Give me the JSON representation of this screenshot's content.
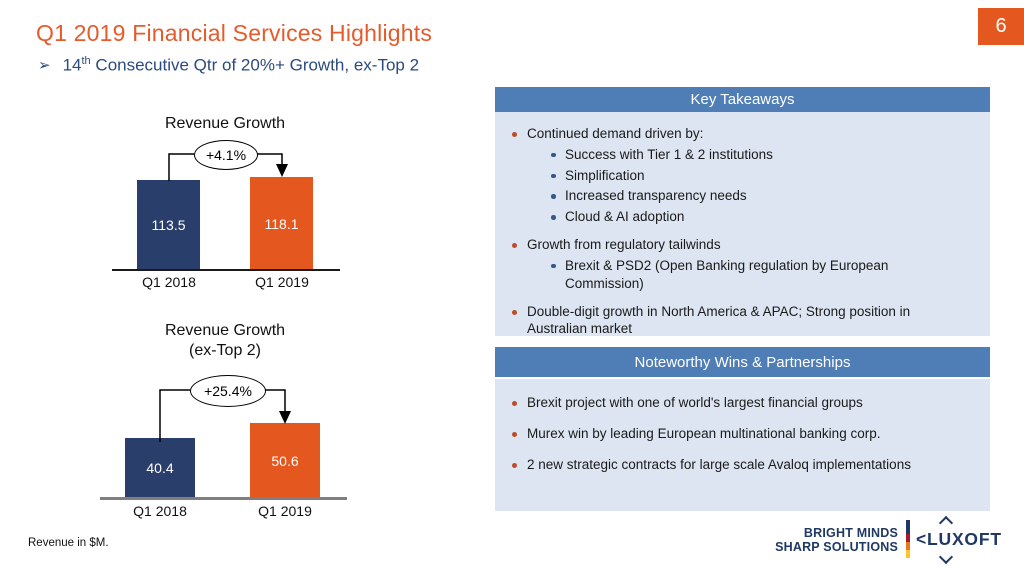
{
  "slide": {
    "page_number": "6",
    "title": "Q1 2019 Financial Services Highlights",
    "subtitle": {
      "bullet": "➢",
      "num": "14",
      "sup": "th",
      "rest": " Consecutive Qtr of 20%+ Growth, ex-Top 2"
    },
    "footnote": "Revenue in $M."
  },
  "colors": {
    "accent_orange": "#E4571F",
    "bar_navy": "#2A3E6C",
    "panel_header_blue": "#4F7DB5",
    "panel_body_blue": "#DCE5F1",
    "subtitle_navy": "#2B4A7E",
    "logo_navy": "#1F3864"
  },
  "chart_data": [
    {
      "type": "bar",
      "title": "Revenue Growth",
      "subtitle": "",
      "categories": [
        "Q1 2018",
        "Q1 2019"
      ],
      "values": [
        113.5,
        118.1
      ],
      "value_labels": [
        "113.5",
        "118.1"
      ],
      "bar_colors": [
        "#2A3E6C",
        "#E4571F"
      ],
      "annotation": "+4.1%",
      "unit": "$M",
      "xlabel": "",
      "ylabel": "",
      "grid": false,
      "legend": false
    },
    {
      "type": "bar",
      "title": "Revenue Growth",
      "subtitle": "(ex-Top 2)",
      "categories": [
        "Q1 2018",
        "Q1 2019"
      ],
      "values": [
        40.4,
        50.6
      ],
      "value_labels": [
        "40.4",
        "50.6"
      ],
      "bar_colors": [
        "#2A3E6C",
        "#E4571F"
      ],
      "annotation": "+25.4%",
      "unit": "$M",
      "xlabel": "",
      "ylabel": "",
      "grid": false,
      "legend": false
    }
  ],
  "panels": [
    {
      "header": "Key Takeaways",
      "items": [
        {
          "level": 1,
          "text": "Continued demand driven by:"
        },
        {
          "level": 2,
          "text": "Success with Tier 1 & 2 institutions"
        },
        {
          "level": 2,
          "text": "Simplification"
        },
        {
          "level": 2,
          "text": "Increased transparency needs"
        },
        {
          "level": 2,
          "text": "Cloud & AI adoption"
        },
        {
          "level": 1,
          "text": "Growth from regulatory tailwinds"
        },
        {
          "level": 2,
          "text": "Brexit & PSD2 (Open Banking regulation by European Commission)"
        },
        {
          "level": 1,
          "text": "Double-digit growth in North America & APAC; Strong position in Australian market"
        }
      ]
    },
    {
      "header": "Noteworthy Wins & Partnerships",
      "items": [
        {
          "level": 1,
          "text": "Brexit project with one of world's largest financial groups"
        },
        {
          "level": 1,
          "text": "Murex win by leading European multinational banking corp."
        },
        {
          "level": 1,
          "text": "2 new strategic contracts for large scale Avaloq implementations"
        }
      ]
    }
  ],
  "logo": {
    "tagline_line1": "BRIGHT MINDS",
    "tagline_line2": "SHARP SOLUTIONS",
    "brand_display": "<LUXOFT"
  }
}
